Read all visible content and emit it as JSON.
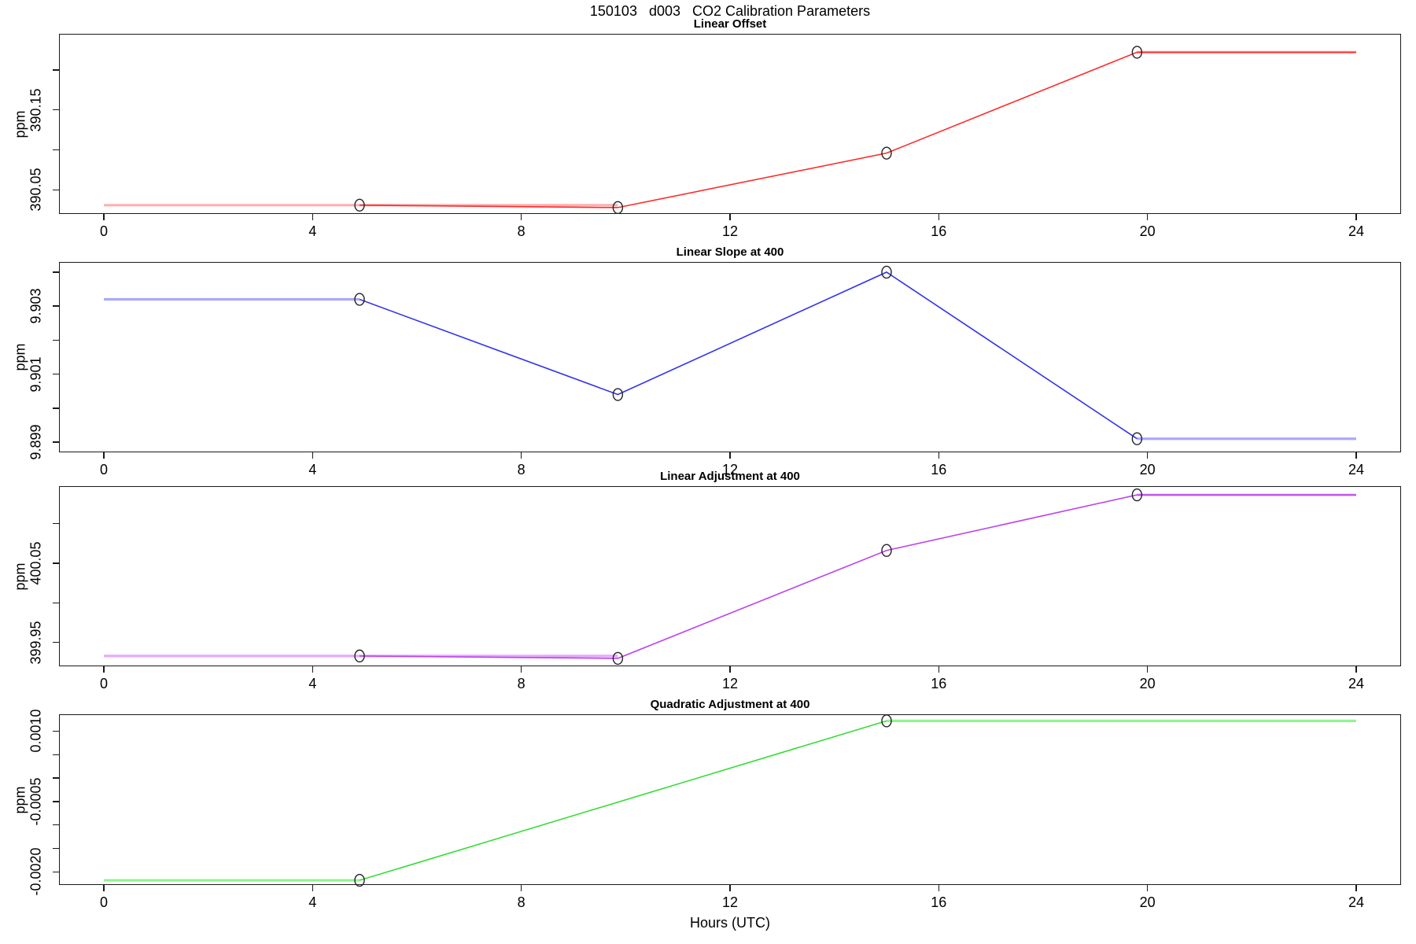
{
  "title": "150103   d003   CO2 Calibration Parameters",
  "xlabel": "Hours (UTC)",
  "ylabel": "ppm",
  "axis_color": "#1a1a1a",
  "marker_color": "#222222",
  "xlim": [
    -0.86,
    24.86
  ],
  "xticks": [
    0,
    4,
    8,
    12,
    16,
    20,
    24
  ],
  "chart_data": [
    {
      "type": "line",
      "title": "Linear Offset",
      "ylabel": "ppm",
      "color": "#ff2b2b",
      "extrap_color": "#ffb0b0",
      "marker": "open-circle",
      "cal_points": {
        "x": [
          4.9,
          9.85,
          15.0,
          19.8
        ],
        "y": [
          390.031,
          390.028,
          390.096,
          390.222
        ]
      },
      "line_path": [
        [
          4.9,
          390.031
        ],
        [
          9.85,
          390.028
        ],
        [
          15.0,
          390.096
        ],
        [
          19.8,
          390.222
        ],
        [
          24.0,
          390.222
        ]
      ],
      "extrap_segments": [
        [
          [
            0.0,
            390.031
          ],
          [
            9.85,
            390.031
          ]
        ],
        [
          [
            19.8,
            390.222
          ],
          [
            24.0,
            390.222
          ]
        ]
      ],
      "ylim": [
        390.02,
        390.245
      ],
      "yticks": [
        {
          "v": 390.05,
          "label": "390.05"
        },
        {
          "v": 390.1,
          "label": ""
        },
        {
          "v": 390.15,
          "label": "390.15"
        },
        {
          "v": 390.2,
          "label": ""
        }
      ]
    },
    {
      "type": "line",
      "title": "Linear Slope at 400",
      "ylabel": "ppm",
      "color": "#3333ee",
      "extrap_color": "#a8a8ff",
      "marker": "open-circle",
      "cal_points": {
        "x": [
          4.9,
          9.85,
          15.0,
          19.8
        ],
        "y": [
          9.9032,
          9.9004,
          9.904,
          9.8991
        ]
      },
      "line_path": [
        [
          4.9,
          9.9032
        ],
        [
          9.85,
          9.9004
        ],
        [
          15.0,
          9.904
        ],
        [
          19.8,
          9.8991
        ]
      ],
      "extrap_segments": [
        [
          [
            0.0,
            9.9032
          ],
          [
            4.9,
            9.9032
          ]
        ],
        [
          [
            19.8,
            9.8991
          ],
          [
            24.0,
            9.8991
          ]
        ]
      ],
      "ylim": [
        9.8987,
        9.9043
      ],
      "yticks": [
        {
          "v": 9.899,
          "label": "9.899"
        },
        {
          "v": 9.9,
          "label": ""
        },
        {
          "v": 9.901,
          "label": "9.901"
        },
        {
          "v": 9.902,
          "label": ""
        },
        {
          "v": 9.903,
          "label": "9.903"
        },
        {
          "v": 9.904,
          "label": ""
        }
      ]
    },
    {
      "type": "line",
      "title": "Linear Adjustment at 400",
      "ylabel": "ppm",
      "color": "#bb44ee",
      "extrap_color": "#e3aaf8",
      "marker": "open-circle",
      "cal_points": {
        "x": [
          4.9,
          9.85,
          15.0,
          19.8
        ],
        "y": [
          399.933,
          399.93,
          400.066,
          400.136
        ]
      },
      "line_path": [
        [
          4.9,
          399.933
        ],
        [
          9.85,
          399.93
        ],
        [
          15.0,
          400.066
        ],
        [
          19.8,
          400.136
        ],
        [
          24.0,
          400.136
        ]
      ],
      "extrap_segments": [
        [
          [
            0.0,
            399.933
          ],
          [
            9.85,
            399.933
          ]
        ],
        [
          [
            19.8,
            400.136
          ],
          [
            24.0,
            400.136
          ]
        ]
      ],
      "ylim": [
        399.92,
        400.147
      ],
      "yticks": [
        {
          "v": 399.95,
          "label": "399.95"
        },
        {
          "v": 400.0,
          "label": ""
        },
        {
          "v": 400.05,
          "label": "400.05"
        },
        {
          "v": 400.1,
          "label": ""
        }
      ]
    },
    {
      "type": "line",
      "title": "Quadratic Adjustment at 400",
      "ylabel": "ppm",
      "color": "#35dd35",
      "extrap_color": "#90f590",
      "marker": "open-circle",
      "cal_points": {
        "x": [
          4.9,
          15.0
        ],
        "y": [
          -0.00218,
          0.00122
        ]
      },
      "line_path": [
        [
          4.9,
          -0.00218
        ],
        [
          15.0,
          0.00122
        ]
      ],
      "extrap_segments": [
        [
          [
            0.0,
            -0.00218
          ],
          [
            4.9,
            -0.00218
          ]
        ],
        [
          [
            15.0,
            0.00122
          ],
          [
            24.0,
            0.00122
          ]
        ]
      ],
      "ylim": [
        -0.00228,
        0.00136
      ],
      "yticks": [
        {
          "v": -0.002,
          "label": "-0.0020"
        },
        {
          "v": -0.0015,
          "label": ""
        },
        {
          "v": -0.001,
          "label": ""
        },
        {
          "v": -0.0005,
          "label": "-0.0005"
        },
        {
          "v": 0.0,
          "label": ""
        },
        {
          "v": 0.0005,
          "label": ""
        },
        {
          "v": 0.001,
          "label": "0.0010"
        }
      ]
    }
  ]
}
